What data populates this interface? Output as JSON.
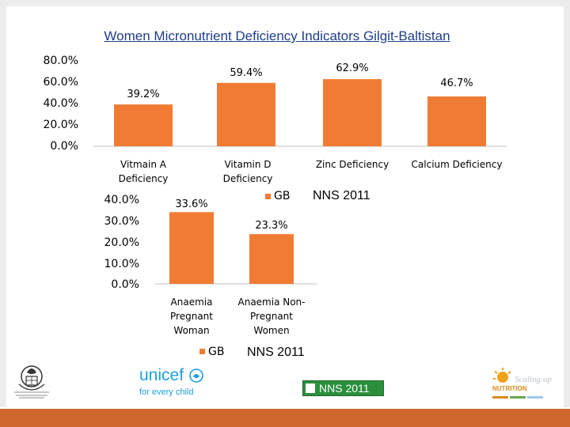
{
  "title": "Women Micronutrient Deficiency  Indicators  Gilgit-Baltistan",
  "chart_data": [
    {
      "type": "bar",
      "categories": [
        "Vitmain A Deficiency",
        "Vitamin D Deficiency",
        "Zinc Deficiency",
        "Calcium Deficiency"
      ],
      "series": [
        {
          "name": "GB",
          "values": [
            39.2,
            59.4,
            62.9,
            46.7
          ]
        }
      ],
      "value_labels": [
        "39.2%",
        "59.4%",
        "62.9%",
        "46.7%"
      ],
      "y_ticks": [
        "0.0%",
        "20.0%",
        "40.0%",
        "60.0%",
        "80.0%"
      ],
      "ylim": [
        0,
        80
      ],
      "legend": "GB",
      "source": "NNS 2011",
      "bar_color": "#f07c33"
    },
    {
      "type": "bar",
      "categories": [
        "Anaemia Pregnant Woman",
        "Anaemia Non-Pregnant Women"
      ],
      "series": [
        {
          "name": "GB",
          "values": [
            33.6,
            23.3
          ]
        }
      ],
      "value_labels": [
        "33.6%",
        "23.3%"
      ],
      "y_ticks": [
        "0.0%",
        "10.0%",
        "20.0%",
        "30.0%",
        "40.0%"
      ],
      "ylim": [
        0,
        40
      ],
      "legend": "GB",
      "source": "NNS 2011",
      "bar_color": "#f07c33"
    }
  ],
  "logos": {
    "unicef": "unicef",
    "unicef_tagline": "for every child",
    "nns": "NNS 2011",
    "sun_scaling": "Scaling up",
    "sun_nutrition": "NUTRITION"
  },
  "colors": {
    "accent": "#f07c33",
    "title": "#1f3d8a",
    "bottom_bar": "#d0672c"
  }
}
